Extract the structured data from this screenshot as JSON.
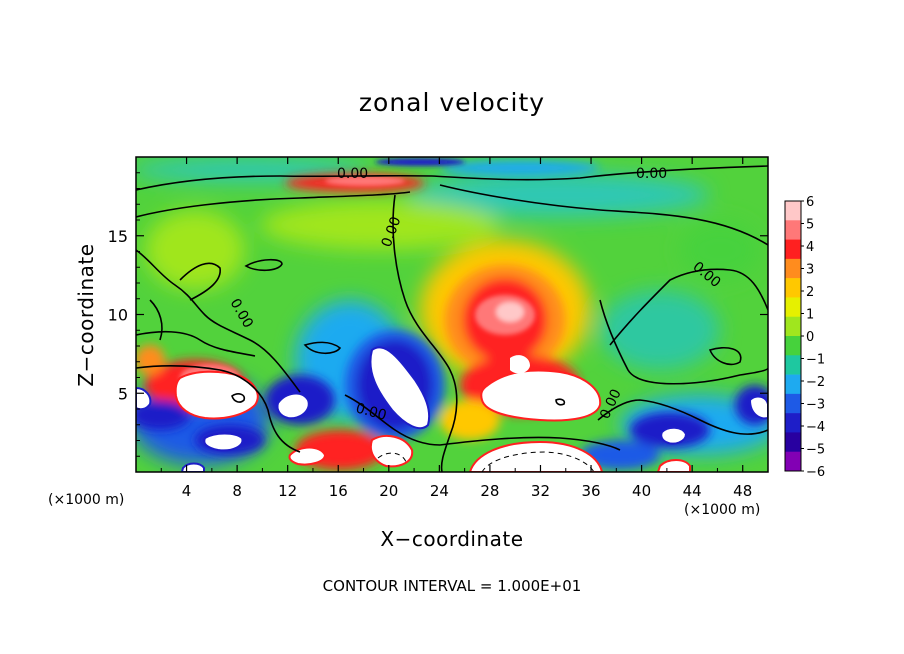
{
  "title": "zonal velocity",
  "x_label": "X−coordinate",
  "y_label": "Z−coordinate",
  "x_unit_left": "(×1000 m)",
  "x_unit_right": "(×1000 m)",
  "contour_note": "CONTOUR INTERVAL = 1.000E+01",
  "chart_data": {
    "type": "heatmap",
    "title": "zonal velocity",
    "xlabel": "X−coordinate",
    "ylabel": "Z−coordinate",
    "x_unit": "(×1000 m)",
    "xlim": [
      0,
      50
    ],
    "ylim": [
      0,
      20
    ],
    "x_ticks": [
      4,
      8,
      12,
      16,
      20,
      24,
      28,
      32,
      36,
      40,
      44,
      48
    ],
    "y_ticks": [
      5,
      10,
      15
    ],
    "colorbar": {
      "ticks": [
        6,
        5,
        4,
        3,
        2,
        1,
        0,
        -1,
        -2,
        -3,
        -4,
        -5,
        -6
      ],
      "colors": [
        "#ffc8c8",
        "#ff7878",
        "#ff2020",
        "#ff8c1e",
        "#ffc800",
        "#e6f000",
        "#a0e61e",
        "#46d23c",
        "#1ec8a0",
        "#1eaaf0",
        "#1e5ae6",
        "#1e1ec8",
        "#2800a0",
        "#8200b4"
      ]
    },
    "contour_labels": [
      {
        "text": "0.00",
        "x": 15.7,
        "z": 18.9
      },
      {
        "text": "0.00",
        "x": 41.1,
        "z": 18.9
      },
      {
        "text": "0.00",
        "x": 20.4,
        "z": 15.4
      },
      {
        "text": "0.00",
        "x": 8.0,
        "z": 10.0
      },
      {
        "text": "0.00",
        "x": 46.0,
        "z": 12.2
      },
      {
        "text": "0.00",
        "x": 18.8,
        "z": 4.1
      },
      {
        "text": "0.00",
        "x": 38.2,
        "z": 4.5
      }
    ],
    "features": [
      {
        "name": "strong positive jet",
        "x": 29.8,
        "z": 10,
        "value": 5.5
      },
      {
        "name": "strong negative cell",
        "x": 21,
        "z": 5.5,
        "value": -6
      },
      {
        "name": "positive surface region",
        "x": 30.5,
        "z": 4.5,
        "value": 6
      },
      {
        "name": "upper positive band",
        "x": 18,
        "z": 18.2,
        "value": 5
      },
      {
        "name": "upper negative band",
        "x": 36,
        "z": 18.5,
        "value": -2.5
      }
    ]
  }
}
